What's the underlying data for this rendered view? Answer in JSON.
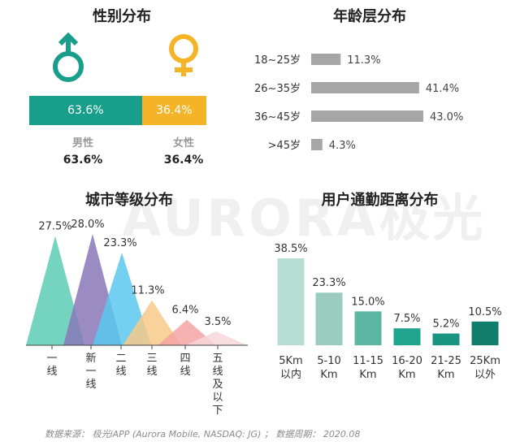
{
  "watermark": "AURORA极光",
  "gender": {
    "title": "性别分布",
    "male": {
      "label": "男性",
      "pct": "63.6%",
      "value": 63.6,
      "color": "#1a9e8c",
      "icon": "male-symbol-icon"
    },
    "female": {
      "label": "女性",
      "pct": "36.4%",
      "value": 36.4,
      "color": "#f5b428",
      "icon": "female-symbol-icon"
    }
  },
  "chart_data": [
    {
      "type": "bar",
      "orientation": "horizontal",
      "title": "年龄层分布",
      "categories": [
        "18~25岁",
        "26~35岁",
        "36~45岁",
        ">45岁"
      ],
      "values": [
        11.3,
        41.4,
        43.0,
        4.3
      ],
      "labels": [
        "11.3%",
        "41.4%",
        "43.0%",
        "4.3%"
      ],
      "color": "#a6a6a6",
      "xlim": [
        0,
        43.0
      ]
    },
    {
      "type": "bar",
      "style": "triangle",
      "title": "城市等级分布",
      "categories": [
        "一线",
        "新一线",
        "二线",
        "三线",
        "四线",
        "五线及以下"
      ],
      "values": [
        27.5,
        28.0,
        23.3,
        11.3,
        6.4,
        3.5
      ],
      "labels": [
        "27.5%",
        "28.0%",
        "23.3%",
        "11.3%",
        "6.4%",
        "3.5%"
      ],
      "colors": [
        "#5cccb4",
        "#8878b8",
        "#5ac8ee",
        "#f7c98a",
        "#f4a4a2",
        "#f6d6da"
      ],
      "ylim": [
        0,
        28.0
      ]
    },
    {
      "type": "bar",
      "title": "用户通勤距离分布",
      "categories": [
        "5Km\n以内",
        "5-10\nKm",
        "11-15\nKm",
        "16-20\nKm",
        "21-25\nKm",
        "25Km\n以外"
      ],
      "values": [
        38.5,
        23.3,
        15.0,
        7.5,
        5.2,
        10.5
      ],
      "labels": [
        "38.5%",
        "23.3%",
        "15.0%",
        "7.5%",
        "5.2%",
        "10.5%"
      ],
      "colors": [
        "#b8ddd4",
        "#9acdbf",
        "#5bb7a2",
        "#21a48f",
        "#199483",
        "#117d6c"
      ],
      "ylim": [
        0,
        38.5
      ]
    }
  ],
  "footnote": "数据来源： 极光iAPP (Aurora Mobile, NASDAQ: JG) ； 数据周期： 2020.08"
}
